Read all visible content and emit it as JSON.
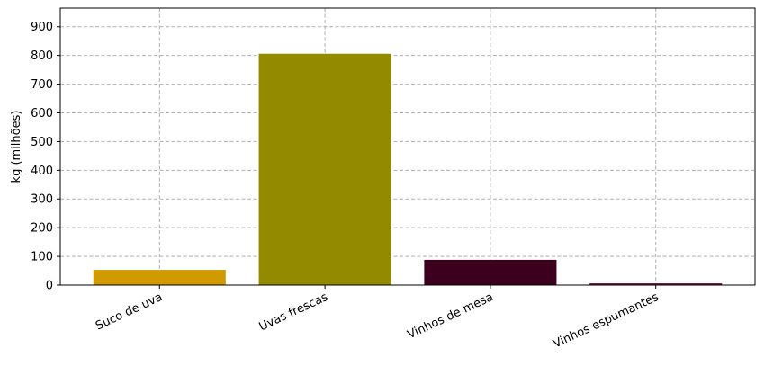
{
  "chart_data": {
    "type": "bar",
    "categories": [
      "Suco de uva",
      "Uvas frescas",
      "Vinhos de mesa",
      "Vinhos espumantes"
    ],
    "values": [
      53,
      806,
      88,
      6
    ],
    "colors": [
      "#d19a00",
      "#938a00",
      "#3c001e",
      "#6b0f2a"
    ],
    "xlabel": "",
    "ylabel": "kg (milhões)",
    "ylim": [
      0,
      965
    ],
    "yticks": [
      0,
      100,
      200,
      300,
      400,
      500,
      600,
      700,
      800,
      900
    ],
    "grid": true,
    "x_tick_rotation": 25
  }
}
